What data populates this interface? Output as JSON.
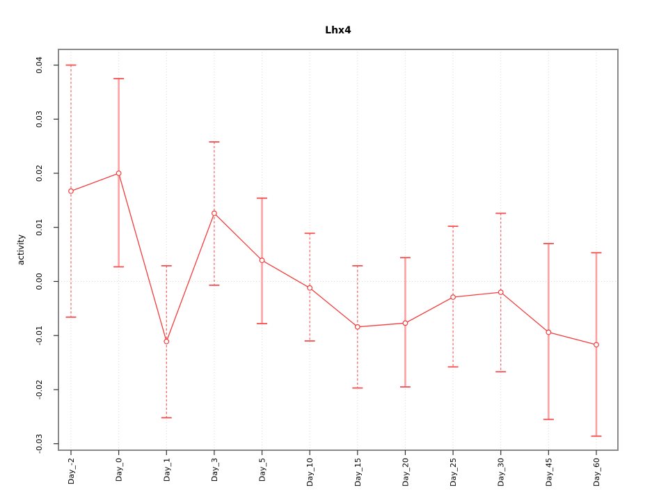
{
  "chart_data": {
    "type": "line",
    "title": "Lhx4",
    "xlabel": "",
    "ylabel": "activity",
    "categories": [
      "Day_-2",
      "Day_0",
      "Day_1",
      "Day_3",
      "Day_5",
      "Day_10",
      "Day_15",
      "Day_20",
      "Day_25",
      "Day_30",
      "Day_45",
      "Day_60"
    ],
    "series": [
      {
        "name": "Lhx4",
        "values": [
          0.0167,
          0.02,
          -0.0111,
          0.0126,
          0.0039,
          -0.0012,
          -0.0084,
          -0.0077,
          -0.0029,
          -0.002,
          -0.0094,
          -0.0117
        ],
        "lower": [
          -0.0066,
          0.0027,
          -0.0252,
          -0.0007,
          -0.0078,
          -0.011,
          -0.0197,
          -0.0195,
          -0.0158,
          -0.0167,
          -0.0255,
          -0.0286
        ],
        "upper": [
          0.04,
          0.0375,
          0.0029,
          0.0258,
          0.0154,
          0.0089,
          0.0029,
          0.0044,
          0.0102,
          0.0126,
          0.007,
          0.0053
        ]
      }
    ],
    "error_bar_stem_styles": [
      "dashed",
      "solid",
      "dashed",
      "dashed",
      "solid",
      "dashed",
      "dashed",
      "solid",
      "dashed",
      "dashed",
      "solid",
      "solid"
    ],
    "y_tick_values": [
      -0.03,
      -0.02,
      -0.01,
      0.0,
      0.01,
      0.02,
      0.03,
      0.04
    ],
    "y_tick_labels": [
      "-0.03",
      "-0.02",
      "-0.01",
      "0.00",
      "0.01",
      "0.02",
      "0.03",
      "0.04"
    ],
    "ylim": [
      -0.0312,
      0.0429
    ],
    "grid": {
      "vertical_dotted_per_category": true,
      "horizontal_dotted_at_zero": true
    },
    "legend": "none",
    "marker": "open-circle",
    "colors": {
      "series_line": "#f43b3b",
      "error_bar_cap": "#f84d4d",
      "error_bar_stem_solid": "#ffa0a0",
      "error_bar_stem_dashed": "#f84d4d",
      "gridline": "#d8d8d8",
      "plot_border": "#888888",
      "axis_tick": "#2e2e2e",
      "text": "#000000",
      "background": "#ffffff"
    }
  }
}
